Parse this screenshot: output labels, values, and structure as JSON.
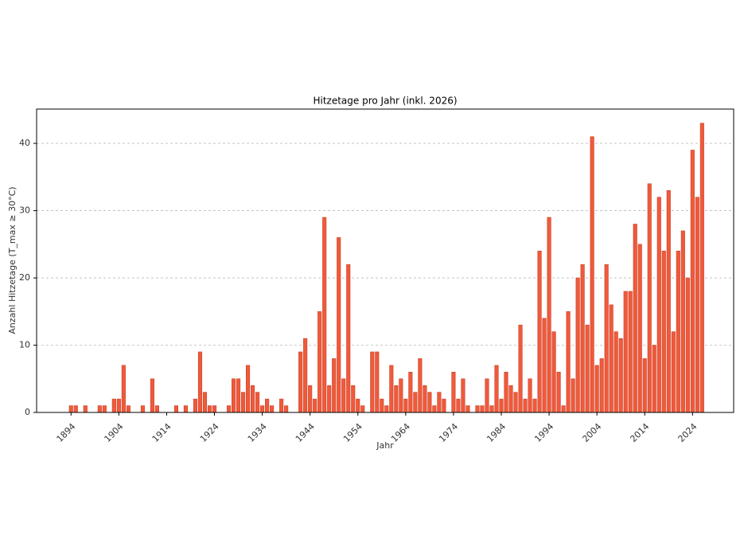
{
  "chart_data": {
    "type": "bar",
    "title": "Hitzetage pro Jahr (inkl. 2026)",
    "x_label": "Jahr",
    "y_label": "Anzahl Hitzetage (T_max ≥ 30°C)",
    "color": "#f05a3a",
    "edge_color": "#c8402a",
    "grid": true,
    "x": [
      1894,
      1895,
      1897,
      1900,
      1901,
      1903,
      1904,
      1905,
      1906,
      1909,
      1911,
      1912,
      1916,
      1918,
      1920,
      1921,
      1922,
      1923,
      1924,
      1927,
      1928,
      1929,
      1930,
      1931,
      1932,
      1933,
      1934,
      1935,
      1936,
      1938,
      1939,
      1942,
      1943,
      1944,
      1945,
      1946,
      1947,
      1948,
      1949,
      1950,
      1951,
      1952,
      1953,
      1954,
      1955,
      1957,
      1958,
      1959,
      1960,
      1961,
      1962,
      1963,
      1964,
      1965,
      1966,
      1967,
      1968,
      1969,
      1970,
      1971,
      1972,
      1974,
      1975,
      1976,
      1977,
      1979,
      1980,
      1981,
      1982,
      1983,
      1984,
      1985,
      1986,
      1987,
      1988,
      1989,
      1990,
      1991,
      1992,
      1993,
      1994,
      1995,
      1996,
      1997,
      1998,
      1999,
      2000,
      2001,
      2002,
      2003,
      2004,
      2005,
      2006,
      2007,
      2008,
      2009,
      2010,
      2011,
      2012,
      2013,
      2014,
      2015,
      2016,
      2017,
      2018,
      2019,
      2020,
      2021,
      2022,
      2023,
      2024,
      2025,
      2026
    ],
    "values": [
      1,
      1,
      1,
      1,
      1,
      2,
      2,
      7,
      1,
      1,
      5,
      1,
      1,
      1,
      2,
      9,
      3,
      1,
      1,
      1,
      5,
      5,
      3,
      7,
      4,
      3,
      1,
      2,
      1,
      2,
      1,
      9,
      11,
      4,
      2,
      15,
      29,
      4,
      8,
      26,
      5,
      22,
      4,
      2,
      1,
      9,
      9,
      2,
      1,
      7,
      4,
      5,
      2,
      6,
      3,
      8,
      4,
      3,
      1,
      3,
      2,
      6,
      2,
      5,
      1,
      1,
      1,
      5,
      1,
      7,
      2,
      6,
      4,
      3,
      13,
      2,
      5,
      2,
      24,
      14,
      29,
      12,
      6,
      1,
      15,
      5,
      20,
      22,
      13,
      41,
      7,
      8,
      22,
      16,
      12,
      11,
      18,
      18,
      28,
      25,
      8,
      34,
      10,
      32,
      24,
      33,
      12,
      24,
      27,
      20,
      39,
      32,
      43
    ],
    "xlim": [
      1886.8,
      2032.6
    ],
    "xticks": [
      1894,
      1904,
      1914,
      1924,
      1934,
      1944,
      1954,
      1964,
      1974,
      1984,
      1994,
      2004,
      2014,
      2024
    ],
    "ylim": [
      0,
      45.1
    ],
    "yticks": [
      0,
      10,
      20,
      30,
      40
    ]
  }
}
